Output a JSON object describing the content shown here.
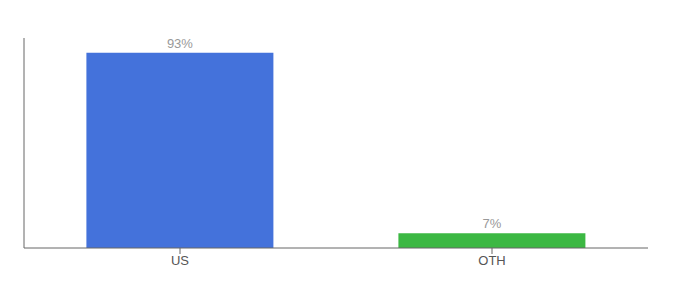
{
  "chart_data": {
    "type": "bar",
    "categories": [
      "US",
      "OTH"
    ],
    "values": [
      93,
      7
    ],
    "value_labels": [
      "93%",
      "7%"
    ],
    "colors": [
      "#4472db",
      "#3cb843"
    ],
    "ylim": [
      0,
      100
    ],
    "data_labels": true,
    "tick_labels": "x"
  }
}
